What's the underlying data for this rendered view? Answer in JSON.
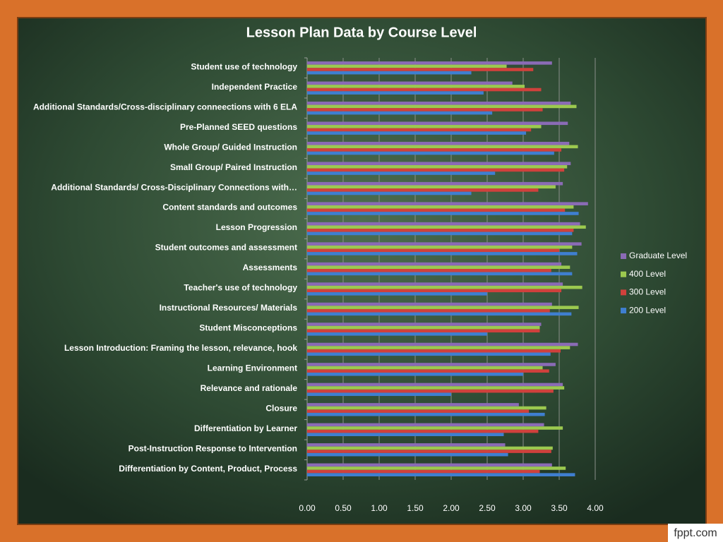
{
  "chart_data": {
    "type": "hbar",
    "title": "Lesson Plan Data by Course Level",
    "categories": [
      "Student use of technology",
      "Independent Practice",
      "Additional Standards/Cross-disciplinary conneections with 6 ELA",
      "Pre-Planned SEED questions",
      "Whole Group/ Guided Instruction",
      "Small Group/ Paired Instruction",
      "Additional Standards/ Cross-Disciplinary Connections with…",
      "Content standards and outcomes",
      "Lesson Progression",
      "Student outcomes and assessment",
      "Assessments",
      "Teacher's use of technology",
      "Instructional Resources/ Materials",
      "Student Misconceptions",
      "Lesson Introduction: Framing the lesson, relevance, hook",
      "Learning Environment",
      "Relevance and rationale",
      "Closure",
      "Differentiation by Learner",
      "Post-Instruction Response to Intervention",
      "Differentiation by Content, Product, Process"
    ],
    "series": [
      {
        "name": "Graduate Level",
        "color": "#8a6bb5",
        "values": [
          3.4,
          2.85,
          3.66,
          3.62,
          3.64,
          3.66,
          3.55,
          3.9,
          3.79,
          3.81,
          3.53,
          3.55,
          3.4,
          3.25,
          3.76,
          3.45,
          3.55,
          2.94,
          3.29,
          2.75,
          3.4
        ]
      },
      {
        "name": "400 Level",
        "color": "#9cc94f",
        "values": [
          2.77,
          3.02,
          3.74,
          3.25,
          3.76,
          3.61,
          3.45,
          3.7,
          3.87,
          3.68,
          3.65,
          3.82,
          3.77,
          3.23,
          3.65,
          3.27,
          3.57,
          3.32,
          3.55,
          3.41,
          3.59
        ]
      },
      {
        "name": "300 Level",
        "color": "#d0413c",
        "values": [
          3.14,
          3.25,
          3.27,
          3.11,
          3.53,
          3.57,
          3.21,
          3.58,
          3.7,
          3.5,
          3.39,
          3.53,
          3.37,
          3.23,
          3.52,
          3.36,
          3.42,
          3.08,
          3.21,
          3.39,
          3.23
        ]
      },
      {
        "name": "200 Level",
        "color": "#3f7fd0",
        "values": [
          2.28,
          2.45,
          2.57,
          3.04,
          3.43,
          2.61,
          2.28,
          3.77,
          3.68,
          3.75,
          3.68,
          2.5,
          3.67,
          2.5,
          3.38,
          3.0,
          2.0,
          3.3,
          2.73,
          2.79,
          3.72
        ]
      }
    ],
    "xlim": [
      0,
      4
    ],
    "xticks": [
      {
        "value": 0,
        "label": "0.00"
      },
      {
        "value": 0.5,
        "label": "0.50"
      },
      {
        "value": 1,
        "label": "1.00"
      },
      {
        "value": 1.5,
        "label": "1.50"
      },
      {
        "value": 2,
        "label": "2.00"
      },
      {
        "value": 2.5,
        "label": "2.50"
      },
      {
        "value": 3,
        "label": "3.00"
      },
      {
        "value": 3.5,
        "label": "3.50"
      },
      {
        "value": 4,
        "label": "4.00"
      }
    ],
    "grid": true,
    "legend": "right"
  },
  "watermark": "fppt.com"
}
